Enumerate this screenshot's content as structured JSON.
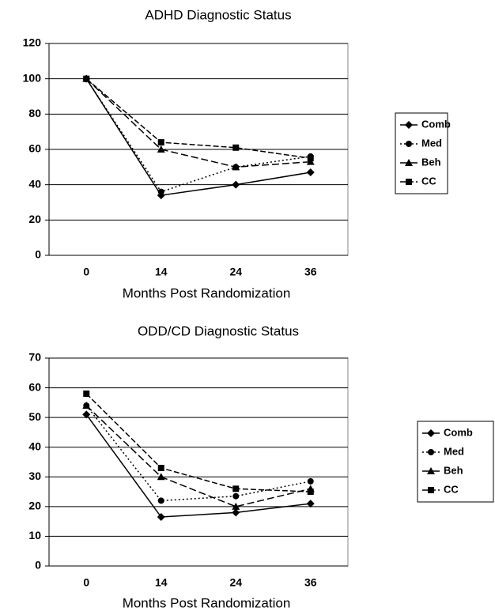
{
  "chart_data": [
    {
      "type": "line",
      "title": "ADHD Diagnostic Status",
      "x_label": "Months Post Randomization",
      "categories": [
        "0",
        "14",
        "24",
        "36"
      ],
      "series": [
        {
          "name": "Comb",
          "color": "#000000",
          "style": "solid",
          "marker": "diamond",
          "values": [
            100,
            34,
            40,
            47
          ]
        },
        {
          "name": "Med",
          "color": "#000000",
          "style": "dotted",
          "marker": "circle",
          "values": [
            100,
            36,
            50,
            56
          ]
        },
        {
          "name": "Beh",
          "color": "#000000",
          "style": "dashed",
          "marker": "triangle",
          "values": [
            100,
            60,
            50,
            53
          ]
        },
        {
          "name": "CC",
          "color": "#000000",
          "style": "dashdot",
          "marker": "square",
          "values": [
            100,
            64,
            61,
            55
          ]
        }
      ],
      "ylim": [
        0,
        120
      ],
      "yticks": [
        0,
        20,
        40,
        60,
        80,
        100,
        120
      ],
      "grid": true,
      "legend": "right"
    },
    {
      "type": "line",
      "title": "ODD/CD Diagnostic Status",
      "x_label": "Months Post Randomization",
      "categories": [
        "0",
        "14",
        "24",
        "36"
      ],
      "series": [
        {
          "name": "Comb",
          "color": "#000000",
          "style": "solid",
          "marker": "diamond",
          "values": [
            51,
            16.5,
            18,
            21
          ]
        },
        {
          "name": "Med",
          "color": "#000000",
          "style": "dotted",
          "marker": "circle",
          "values": [
            54,
            22,
            23.5,
            28.5
          ]
        },
        {
          "name": "Beh",
          "color": "#000000",
          "style": "dashed",
          "marker": "triangle",
          "values": [
            54,
            30,
            20,
            26
          ]
        },
        {
          "name": "CC",
          "color": "#000000",
          "style": "dashdot",
          "marker": "square",
          "values": [
            58,
            33,
            26,
            25
          ]
        }
      ],
      "ylim": [
        0,
        70
      ],
      "yticks": [
        0,
        10,
        20,
        30,
        40,
        50,
        60,
        70
      ],
      "grid": true,
      "legend": "right"
    }
  ]
}
